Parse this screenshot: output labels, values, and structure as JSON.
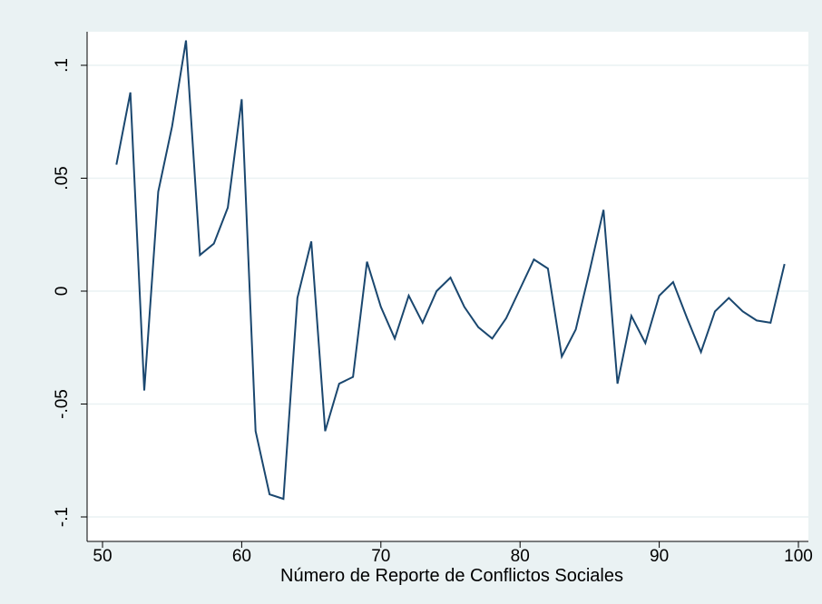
{
  "chart_data": {
    "type": "line",
    "title": "",
    "xlabel": "Número de Reporte de Conflictos Sociales",
    "ylabel": "",
    "xlim": [
      50,
      100
    ],
    "ylim": [
      -0.1,
      0.1
    ],
    "xticks": [
      50,
      60,
      70,
      80,
      90,
      100
    ],
    "xtick_labels": [
      "50",
      "60",
      "70",
      "80",
      "90",
      "100"
    ],
    "yticks": [
      -0.1,
      -0.05,
      0,
      0.05,
      0.1
    ],
    "ytick_labels": [
      "-.1",
      "-.05",
      "0",
      ".05",
      ".1"
    ],
    "grid": true,
    "legend": "none",
    "series": [
      {
        "x": [
          51,
          52,
          53,
          54,
          55,
          56,
          57,
          58,
          59,
          60,
          61,
          62,
          63,
          64,
          65,
          66,
          67,
          68,
          69,
          70,
          71,
          72,
          73,
          74,
          75,
          76,
          77,
          78,
          79,
          80,
          81,
          82,
          83,
          84,
          85,
          86,
          87,
          88,
          89,
          90,
          91,
          92,
          93,
          94,
          95,
          96,
          97,
          98,
          99
        ],
        "values": [
          0.056,
          0.088,
          -0.044,
          0.044,
          0.073,
          0.111,
          0.016,
          0.021,
          0.037,
          0.085,
          -0.062,
          -0.09,
          -0.092,
          -0.003,
          0.022,
          -0.062,
          -0.041,
          -0.038,
          0.013,
          -0.007,
          -0.021,
          -0.002,
          -0.014,
          0.0,
          0.006,
          -0.007,
          -0.016,
          -0.021,
          -0.012,
          0.001,
          0.014,
          0.01,
          -0.029,
          -0.017,
          0.009,
          0.036,
          -0.041,
          -0.011,
          -0.023,
          -0.002,
          0.004,
          -0.012,
          -0.027,
          -0.009,
          -0.003,
          -0.009,
          -0.013,
          -0.014,
          0.012
        ]
      }
    ],
    "colors": {
      "background": "#eaf2f3",
      "plot_area": "#ffffff",
      "line": "#1a476f",
      "grid": "#eaf2f3",
      "axis": "#000000"
    }
  }
}
